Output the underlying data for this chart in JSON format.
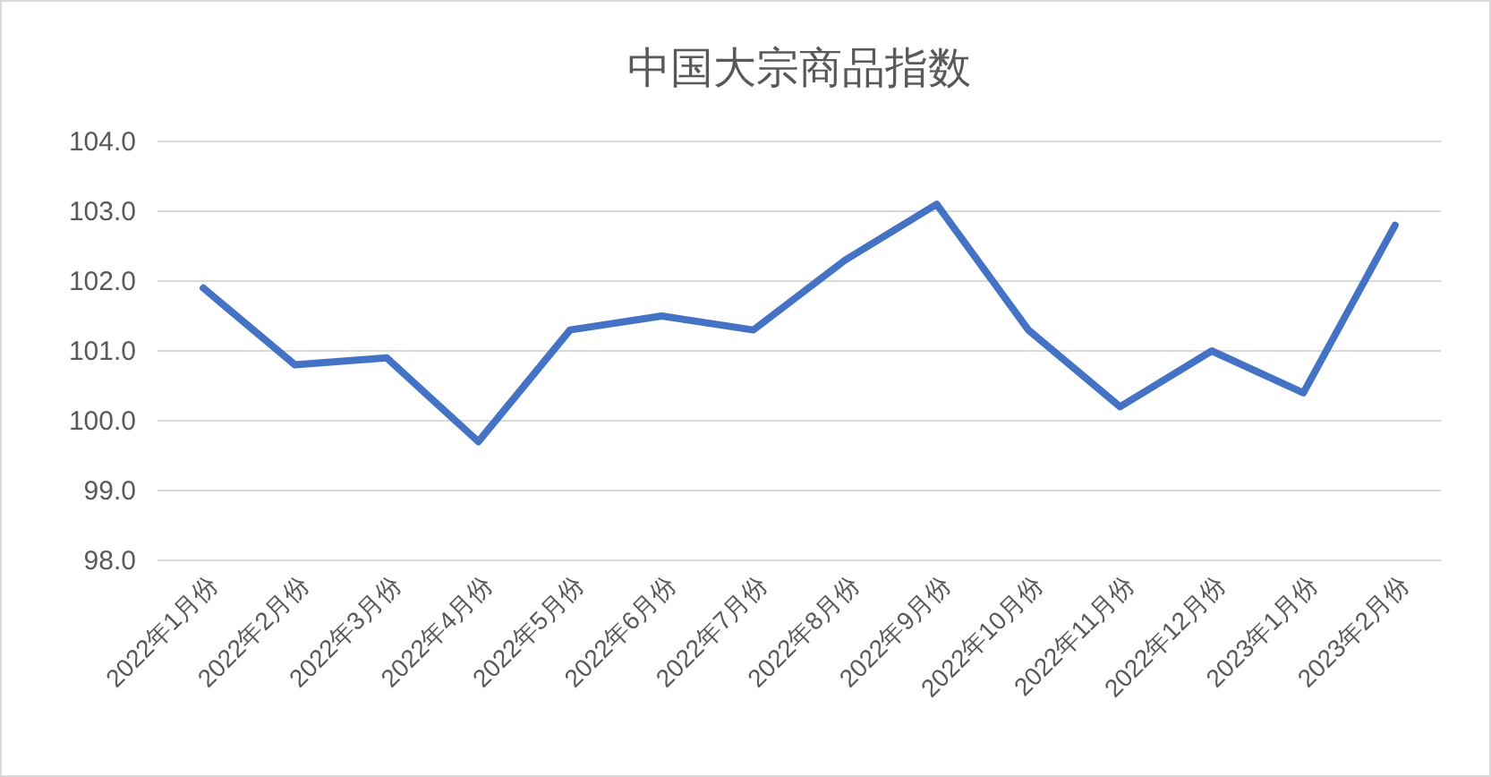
{
  "chart_data": {
    "type": "line",
    "title": "中国大宗商品指数",
    "categories": [
      "2022年1月份",
      "2022年2月份",
      "2022年3月份",
      "2022年4月份",
      "2022年5月份",
      "2022年6月份",
      "2022年7月份",
      "2022年8月份",
      "2022年9月份",
      "2022年10月份",
      "2022年11月份",
      "2022年12月份",
      "2023年1月份",
      "2023年2月份"
    ],
    "series": [
      {
        "color": "#4472c4",
        "values": [
          101.9,
          100.8,
          100.9,
          99.7,
          101.3,
          101.5,
          101.3,
          102.3,
          103.1,
          101.3,
          100.2,
          101.0,
          100.4,
          102.8
        ]
      }
    ],
    "ylim": [
      98,
      104
    ],
    "yticks": [
      {
        "value": 98,
        "label": "98.0"
      },
      {
        "value": 99,
        "label": "99.0"
      },
      {
        "value": 100,
        "label": "100.0"
      },
      {
        "value": 101,
        "label": "101.0"
      },
      {
        "value": 102,
        "label": "102.0"
      },
      {
        "value": 103,
        "label": "103.0"
      },
      {
        "value": 104,
        "label": "104.0"
      }
    ],
    "grid": "y",
    "marker": "none",
    "line_style": "solid"
  }
}
